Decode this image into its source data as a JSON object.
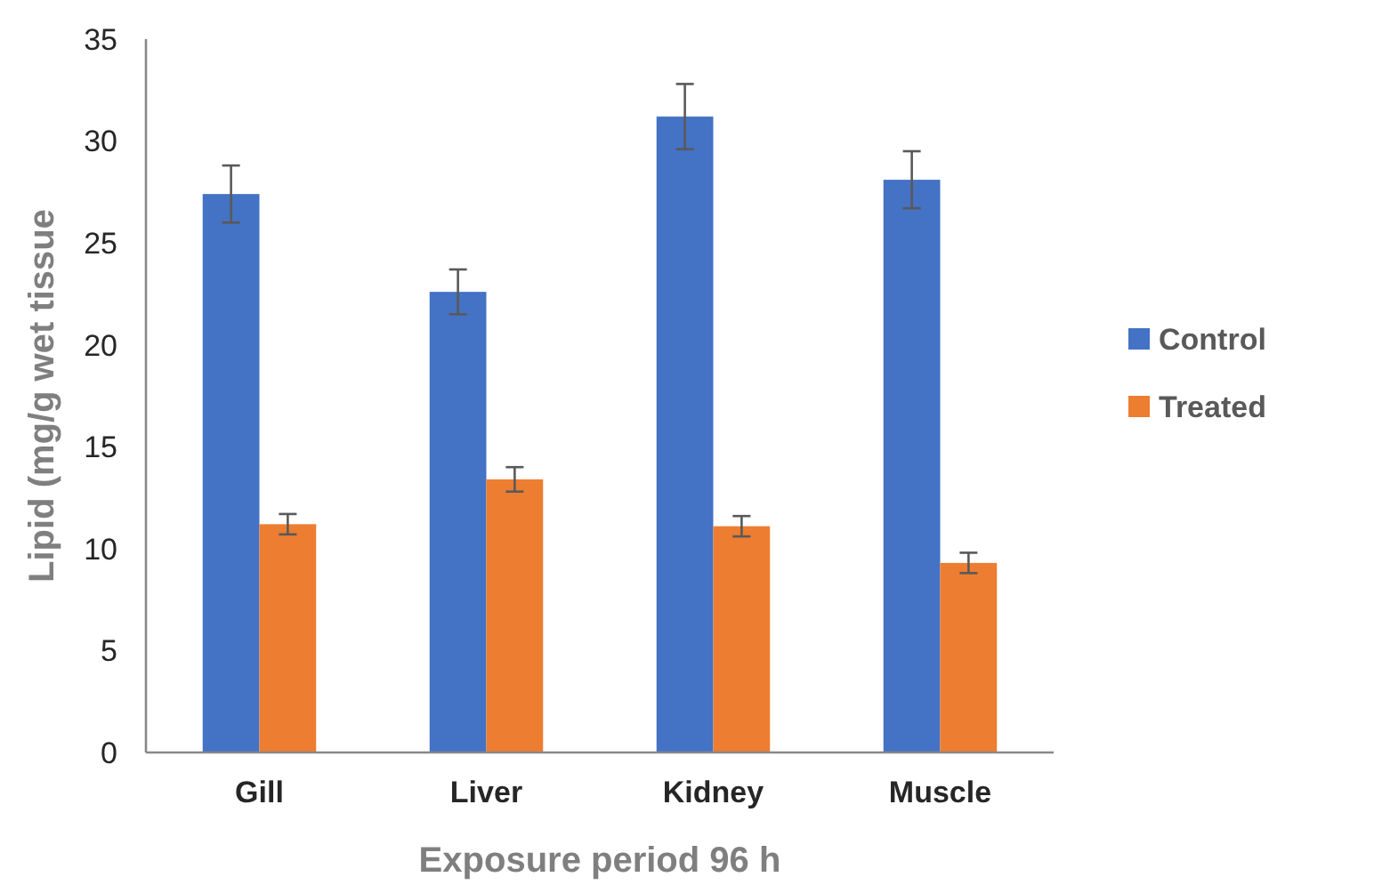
{
  "chart_data": {
    "type": "bar",
    "xlabel": "Exposure period 96 h",
    "ylabel": "Lipid (mg/g wet tissue",
    "categories": [
      "Gill",
      "Liver",
      "Kidney",
      "Muscle"
    ],
    "series": [
      {
        "name": "Control",
        "color": "#4472c4",
        "values": [
          27.4,
          22.6,
          31.2,
          28.1
        ],
        "errors": [
          1.4,
          1.1,
          1.6,
          1.4
        ]
      },
      {
        "name": "Treated",
        "color": "#ed7d31",
        "values": [
          11.2,
          13.4,
          11.1,
          9.3
        ],
        "errors": [
          0.5,
          0.6,
          0.5,
          0.5
        ]
      }
    ],
    "ylim": [
      0,
      35
    ],
    "yticks": [
      0,
      5,
      10,
      15,
      20,
      25,
      30,
      35
    ],
    "grid": false,
    "legend": "right"
  }
}
